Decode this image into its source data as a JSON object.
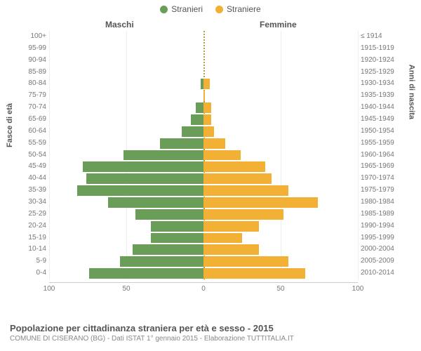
{
  "legend": {
    "male": {
      "label": "Stranieri",
      "color": "#6a9e58"
    },
    "female": {
      "label": "Straniere",
      "color": "#f2b134"
    }
  },
  "headers": {
    "male": "Maschi",
    "female": "Femmine"
  },
  "axis_titles": {
    "left": "Fasce di età",
    "right": "Anni di nascita"
  },
  "chart": {
    "type": "population-pyramid",
    "xlim": 100,
    "xticks_left": [
      100,
      50,
      0
    ],
    "xticks_right": [
      50,
      100
    ],
    "bar_colors": {
      "male": "#6a9e58",
      "female": "#f2b134"
    },
    "background": "#ffffff",
    "grid_color": "#eeeeee",
    "rows": [
      {
        "age": "100+",
        "birth": "≤ 1914",
        "m": 0,
        "f": 0
      },
      {
        "age": "95-99",
        "birth": "1915-1919",
        "m": 0,
        "f": 0
      },
      {
        "age": "90-94",
        "birth": "1920-1924",
        "m": 0,
        "f": 0
      },
      {
        "age": "85-89",
        "birth": "1925-1929",
        "m": 0,
        "f": 0
      },
      {
        "age": "80-84",
        "birth": "1930-1934",
        "m": 2,
        "f": 4
      },
      {
        "age": "75-79",
        "birth": "1935-1939",
        "m": 0,
        "f": 1
      },
      {
        "age": "70-74",
        "birth": "1940-1944",
        "m": 5,
        "f": 5
      },
      {
        "age": "65-69",
        "birth": "1945-1949",
        "m": 8,
        "f": 5
      },
      {
        "age": "60-64",
        "birth": "1950-1954",
        "m": 14,
        "f": 7
      },
      {
        "age": "55-59",
        "birth": "1955-1959",
        "m": 28,
        "f": 14
      },
      {
        "age": "50-54",
        "birth": "1960-1964",
        "m": 52,
        "f": 24
      },
      {
        "age": "45-49",
        "birth": "1965-1969",
        "m": 78,
        "f": 40
      },
      {
        "age": "40-44",
        "birth": "1970-1974",
        "m": 76,
        "f": 44
      },
      {
        "age": "35-39",
        "birth": "1975-1979",
        "m": 82,
        "f": 55
      },
      {
        "age": "30-34",
        "birth": "1980-1984",
        "m": 62,
        "f": 74
      },
      {
        "age": "25-29",
        "birth": "1985-1989",
        "m": 44,
        "f": 52
      },
      {
        "age": "20-24",
        "birth": "1990-1994",
        "m": 34,
        "f": 36
      },
      {
        "age": "15-19",
        "birth": "1995-1999",
        "m": 34,
        "f": 25
      },
      {
        "age": "10-14",
        "birth": "2000-2004",
        "m": 46,
        "f": 36
      },
      {
        "age": "5-9",
        "birth": "2005-2009",
        "m": 54,
        "f": 55
      },
      {
        "age": "0-4",
        "birth": "2010-2014",
        "m": 74,
        "f": 66
      }
    ]
  },
  "footer": {
    "title": "Popolazione per cittadinanza straniera per età e sesso - 2015",
    "subtitle": "COMUNE DI CISERANO (BG) - Dati ISTAT 1° gennaio 2015 - Elaborazione TUTTITALIA.IT"
  }
}
